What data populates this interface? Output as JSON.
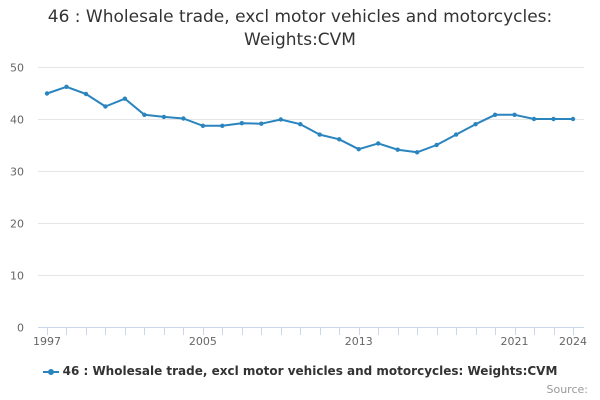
{
  "chart_data": {
    "type": "line",
    "title_line1": "46 : Wholesale trade, excl motor vehicles and motorcycles:",
    "title_line2": "Weights:CVM",
    "xlabel": "",
    "ylabel": "",
    "x": [
      1997,
      1998,
      1999,
      2000,
      2001,
      2002,
      2003,
      2004,
      2005,
      2006,
      2007,
      2008,
      2009,
      2010,
      2011,
      2012,
      2013,
      2014,
      2015,
      2016,
      2017,
      2018,
      2019,
      2020,
      2021,
      2022,
      2023,
      2024
    ],
    "series": [
      {
        "name": "46 : Wholesale trade, excl motor vehicles and motorcycles: Weights:CVM",
        "values": [
          44.9,
          46.2,
          44.8,
          42.4,
          43.9,
          40.8,
          40.4,
          40.1,
          38.7,
          38.7,
          39.2,
          39.1,
          39.9,
          39.0,
          37.0,
          36.1,
          34.2,
          35.3,
          34.1,
          33.6,
          35.0,
          37.0,
          39.0,
          40.8,
          40.8,
          40.0,
          40.0,
          40.0
        ]
      }
    ],
    "xticks": [
      "1997",
      "2005",
      "2013",
      "2021",
      "2024"
    ],
    "yticks": [
      "0",
      "10",
      "20",
      "30",
      "40",
      "50"
    ],
    "ylim": [
      0,
      50
    ],
    "xlim": [
      1997,
      2024
    ],
    "grid": true,
    "legend_position": "bottom",
    "source_label": "Source:",
    "line_color": "#2a84be"
  }
}
